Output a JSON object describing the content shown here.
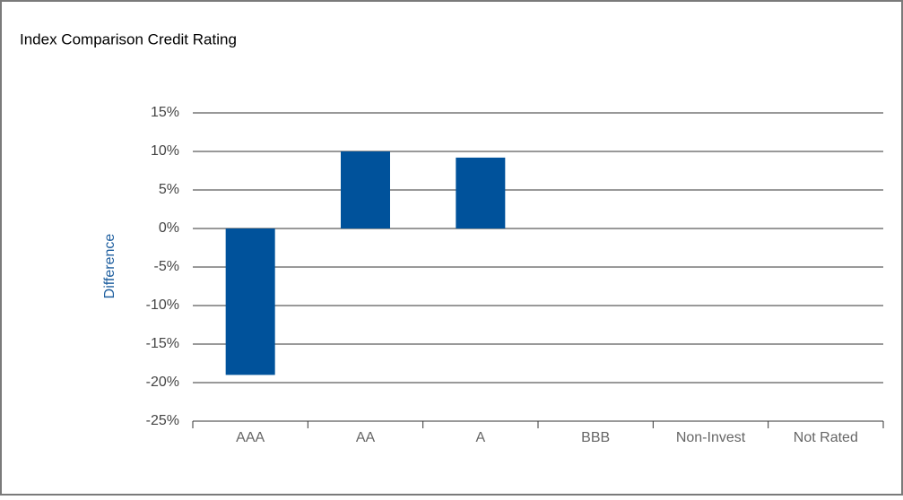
{
  "chart_data": {
    "type": "bar",
    "title": "Index Comparison Credit Rating",
    "y_label": "Difference",
    "categories": [
      "AAA",
      "AA",
      "A",
      "BBB",
      "Non-Invest",
      "Not Rated"
    ],
    "values": [
      -19,
      10,
      9.2,
      0,
      0,
      0
    ],
    "color": "#00529b",
    "ylim": [
      -25,
      15
    ],
    "yticks": [
      {
        "value": -25,
        "label": "-25%"
      },
      {
        "value": -20,
        "label": "-20%"
      },
      {
        "value": -15,
        "label": "-15%"
      },
      {
        "value": -10,
        "label": "-10%"
      },
      {
        "value": -5,
        "label": "-5%"
      },
      {
        "value": 0,
        "label": "0%"
      },
      {
        "value": 5,
        "label": "5%"
      },
      {
        "value": 10,
        "label": "10%"
      },
      {
        "value": 15,
        "label": "15%"
      }
    ],
    "grid": true
  }
}
